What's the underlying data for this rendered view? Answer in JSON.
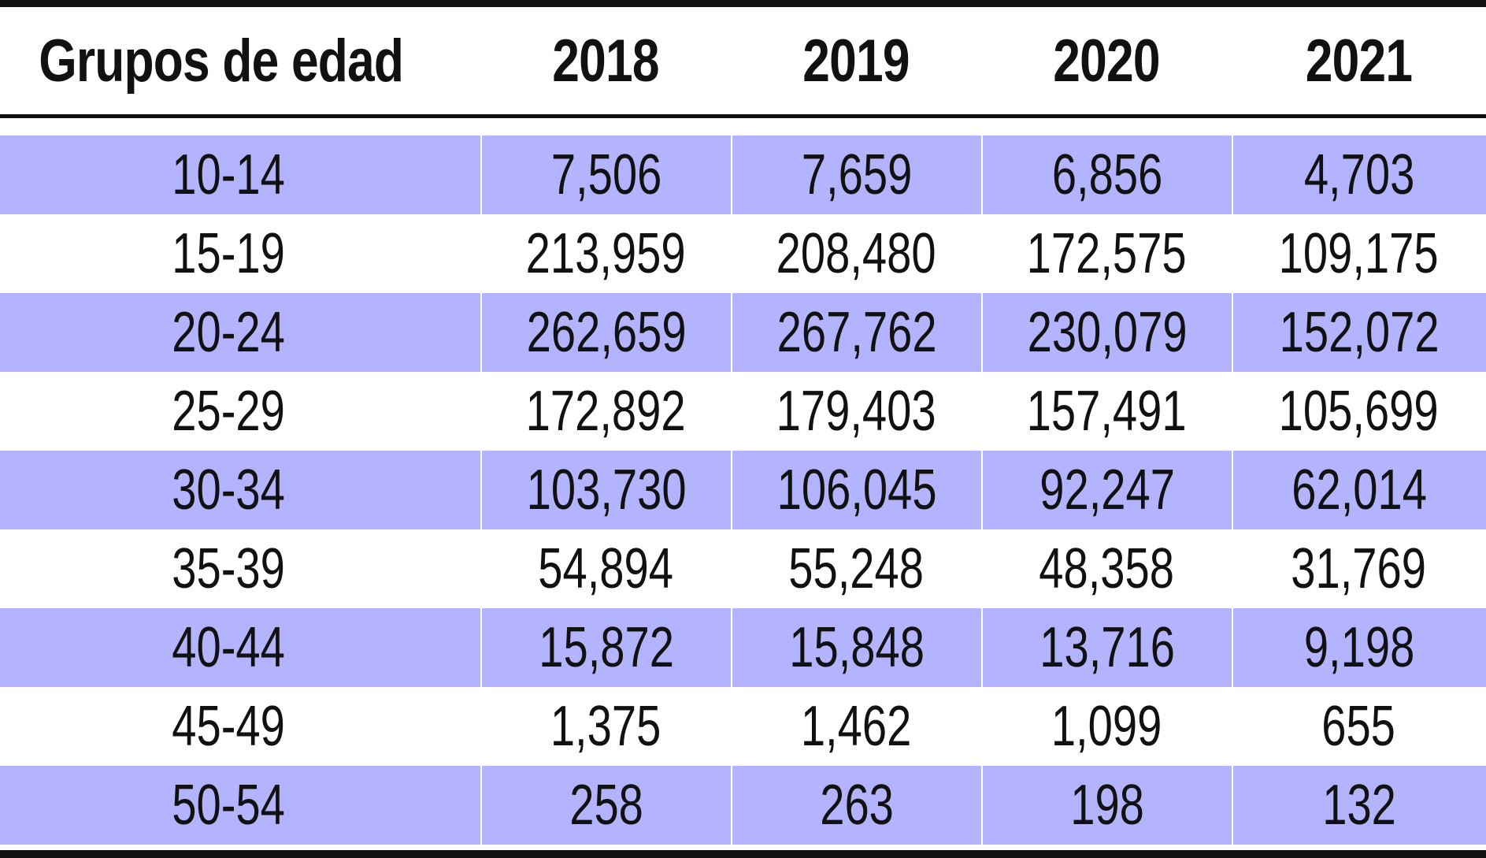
{
  "table": {
    "headers": [
      "Grupos de edad",
      "2018",
      "2019",
      "2020",
      "2021"
    ],
    "rows": [
      [
        "10-14",
        "7,506",
        "7,659",
        "6,856",
        "4,703"
      ],
      [
        "15-19",
        "213,959",
        "208,480",
        "172,575",
        "109,175"
      ],
      [
        "20-24",
        "262,659",
        "267,762",
        "230,079",
        "152,072"
      ],
      [
        "25-29",
        "172,892",
        "179,403",
        "157,491",
        "105,699"
      ],
      [
        "30-34",
        "103,730",
        "106,045",
        "92,247",
        "62,014"
      ],
      [
        "35-39",
        "54,894",
        "55,248",
        "48,358",
        "31,769"
      ],
      [
        "40-44",
        "15,872",
        "15,848",
        "13,716",
        "9,198"
      ],
      [
        "45-49",
        "1,375",
        "1,462",
        "1,099",
        "655"
      ],
      [
        "50-54",
        "258",
        "263",
        "198",
        "132"
      ]
    ],
    "shade_color": "#b3b3ff"
  }
}
